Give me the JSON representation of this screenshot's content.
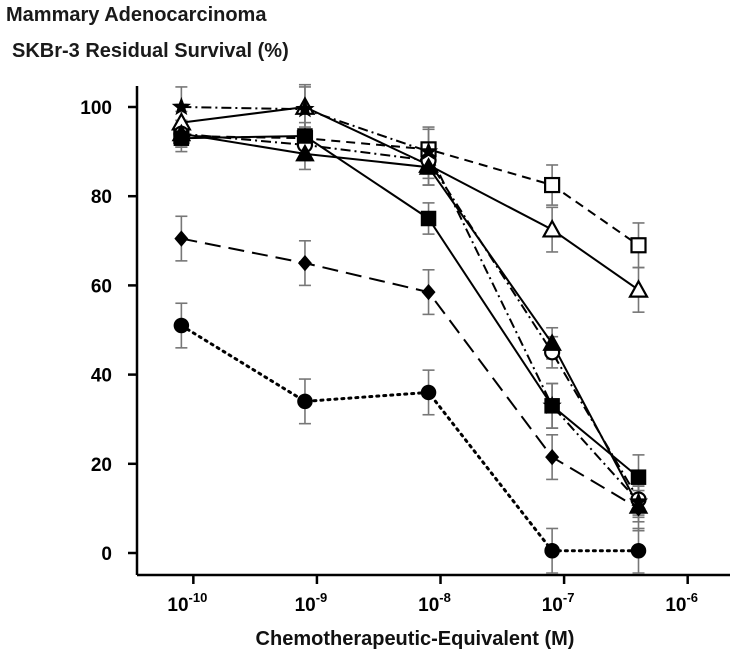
{
  "chart_data": {
    "type": "line",
    "title": "Mammary Adenocarcinoma",
    "subtitle": "SKBr-3 Residual Survival (%)",
    "xlabel": "Chemotherapeutic-Equivalent (M)",
    "ylabel": "",
    "x_scale": "log",
    "xlim": [
      3.5e-11,
      2.2e-06
    ],
    "ylim": [
      0,
      100
    ],
    "grid": false,
    "legend": "none",
    "y_ticks": [
      "0",
      "20",
      "40",
      "60",
      "80",
      "100"
    ],
    "x_ticks": [
      {
        "base": "10",
        "exp": "-10"
      },
      {
        "base": "10",
        "exp": "-9"
      },
      {
        "base": "10",
        "exp": "-8"
      },
      {
        "base": "10",
        "exp": "-7"
      },
      {
        "base": "10",
        "exp": "-6"
      }
    ],
    "x": [
      1e-10,
      1e-09,
      1e-08,
      1e-07,
      1e-06
    ],
    "series": [
      {
        "marker": "square-open",
        "line": "dashed",
        "x": [
          8e-11,
          8e-10,
          8e-09,
          8e-08,
          4e-07
        ],
        "values": [
          93.5,
          93.0,
          90.5,
          82.5,
          69.0
        ],
        "err": [
          2.5,
          2.5,
          5.0,
          4.5,
          5.0
        ]
      },
      {
        "marker": "triangle-open",
        "line": "solid",
        "x": [
          8e-11,
          8e-10,
          8e-09,
          8e-08,
          4e-07
        ],
        "values": [
          96.5,
          100.0,
          87.0,
          72.5,
          59.0
        ],
        "err": [
          2.5,
          5.0,
          4.5,
          5.0,
          5.0
        ]
      },
      {
        "marker": "circle-open",
        "line": "dashdot",
        "x": [
          8e-11,
          8e-10,
          8e-09,
          8e-08,
          4e-07
        ],
        "values": [
          94.0,
          91.5,
          88.0,
          45.0,
          12.0
        ],
        "err": [
          3.0,
          3.5,
          4.0,
          3.5,
          3.5
        ]
      },
      {
        "marker": "triangle-filled",
        "line": "solid",
        "x": [
          8e-11,
          8e-10,
          8e-09,
          8e-08,
          4e-07
        ],
        "values": [
          94.0,
          89.5,
          86.5,
          47.0,
          10.5
        ],
        "err": [
          3.0,
          3.5,
          4.0,
          3.5,
          3.5
        ]
      },
      {
        "marker": "square-filled",
        "line": "solid",
        "x": [
          8e-11,
          8e-10,
          8e-09,
          8e-08,
          4e-07
        ],
        "values": [
          93.0,
          93.5,
          75.0,
          33.0,
          17.0
        ],
        "err": [
          3.0,
          3.0,
          3.5,
          5.0,
          5.0
        ]
      },
      {
        "marker": "star-filled",
        "line": "dashdot",
        "x": [
          8e-11,
          8e-10,
          8e-09,
          8e-08,
          4e-07
        ],
        "values": [
          100.0,
          99.5,
          90.0,
          33.0,
          11.5
        ],
        "err": [
          4.5,
          5.0,
          5.0,
          5.0,
          3.5
        ]
      },
      {
        "marker": "diamond-filled",
        "line": "longdash",
        "x": [
          8e-11,
          8e-10,
          8e-09,
          8e-08,
          4e-07
        ],
        "values": [
          70.5,
          65.0,
          58.5,
          21.5,
          10.0
        ],
        "err": [
          5.0,
          5.0,
          5.0,
          5.0,
          5.0
        ]
      },
      {
        "marker": "circle-filled",
        "line": "dotted",
        "x": [
          8e-11,
          8e-10,
          8e-09,
          8e-08,
          4e-07
        ],
        "values": [
          51.0,
          34.0,
          36.0,
          0.5,
          0.5
        ],
        "err": [
          5.0,
          5.0,
          5.0,
          5.0,
          5.0
        ]
      }
    ]
  },
  "colors": {
    "ink": "#000000",
    "error_bar": "#777777",
    "background": "#ffffff"
  }
}
